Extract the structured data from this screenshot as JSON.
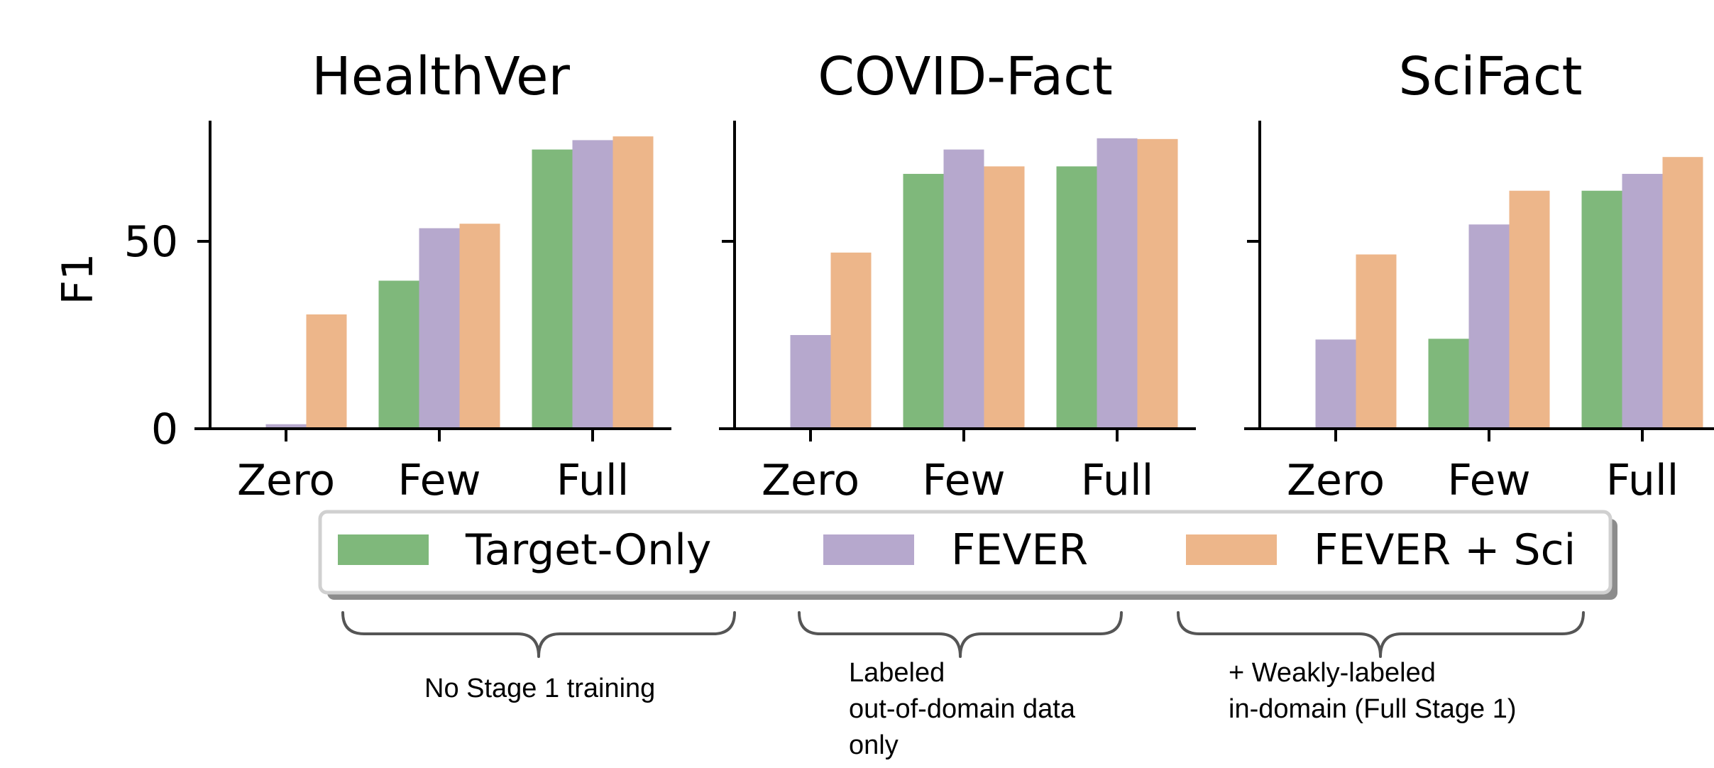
{
  "figure": {
    "ylabel": "F1",
    "yticks": [
      0,
      50
    ],
    "legend": {
      "placement": "below-center",
      "entries": [
        {
          "label": "Target-Only",
          "color": "#7fb87b"
        },
        {
          "label": "FEVER",
          "color": "#b6a8cd"
        },
        {
          "label": "FEVER + Sci",
          "color": "#edb68a"
        }
      ]
    },
    "annotations": [
      {
        "lines": [
          "No Stage 1 training"
        ]
      },
      {
        "lines": [
          "Labeled",
          "out-of-domain data",
          "only"
        ]
      },
      {
        "lines": [
          "+ Weakly-labeled",
          "in-domain (Full Stage 1)"
        ]
      }
    ]
  },
  "chart_data": [
    {
      "type": "bar",
      "title": "HealthVer",
      "categories": [
        "Zero",
        "Few",
        "Full"
      ],
      "ylim": [
        0,
        82
      ],
      "series": [
        {
          "name": "Target-Only",
          "values": [
            0,
            39.5,
            74.5
          ]
        },
        {
          "name": "FEVER",
          "values": [
            1.2,
            53.5,
            77
          ]
        },
        {
          "name": "FEVER + Sci",
          "values": [
            30.5,
            54.7,
            78
          ]
        }
      ]
    },
    {
      "type": "bar",
      "title": "COVID-Fact",
      "categories": [
        "Zero",
        "Few",
        "Full"
      ],
      "ylim": [
        0,
        82
      ],
      "series": [
        {
          "name": "Target-Only",
          "values": [
            0,
            68,
            70
          ]
        },
        {
          "name": "FEVER",
          "values": [
            25,
            74.5,
            77.5
          ]
        },
        {
          "name": "FEVER + Sci",
          "values": [
            47,
            70,
            77.3
          ]
        }
      ]
    },
    {
      "type": "bar",
      "title": "SciFact",
      "categories": [
        "Zero",
        "Few",
        "Full"
      ],
      "ylim": [
        0,
        82
      ],
      "series": [
        {
          "name": "Target-Only",
          "values": [
            0,
            24,
            63.5
          ]
        },
        {
          "name": "FEVER",
          "values": [
            23.8,
            54.5,
            68
          ]
        },
        {
          "name": "FEVER + Sci",
          "values": [
            46.5,
            63.5,
            72.5
          ]
        }
      ]
    }
  ]
}
